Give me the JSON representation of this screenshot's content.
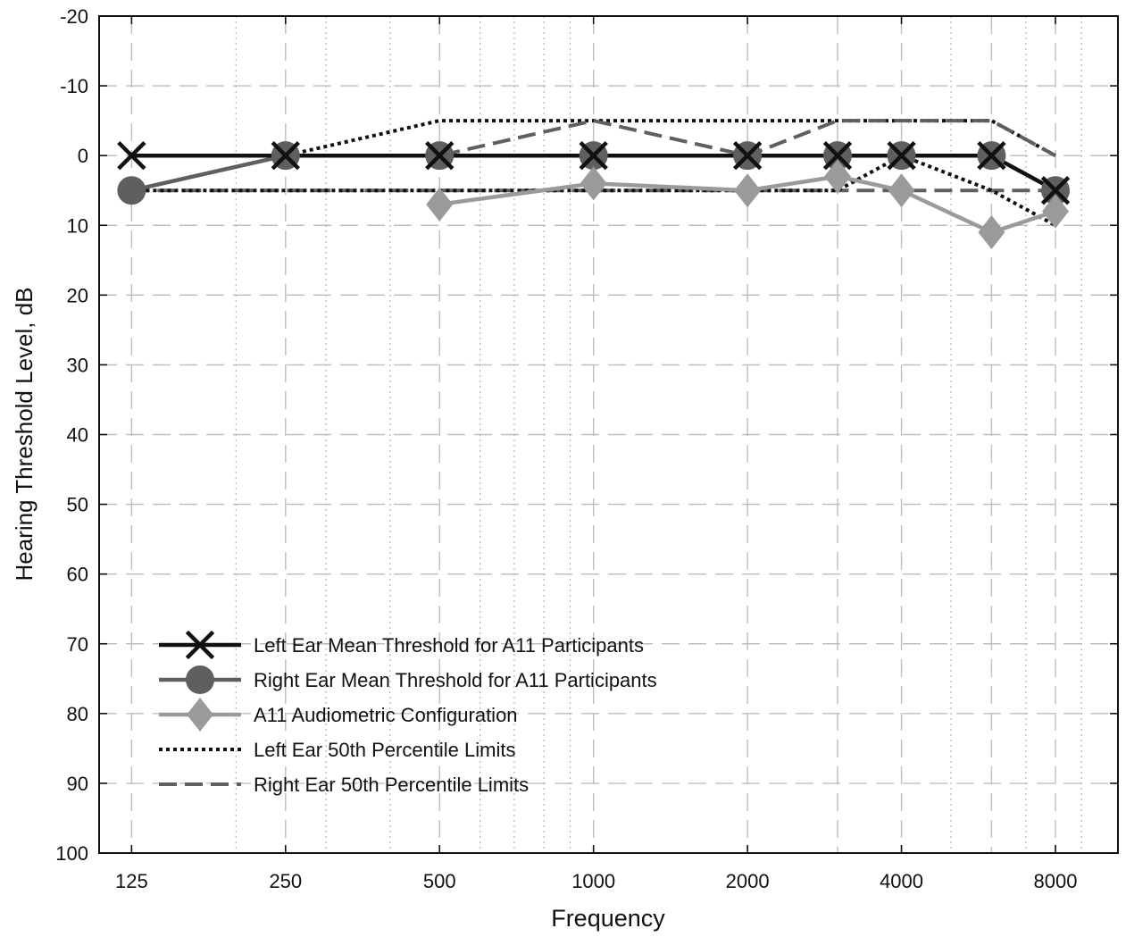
{
  "chart_data": {
    "type": "line",
    "xlabel": "Frequency",
    "ylabel": "Hearing Threshold Level, dB",
    "x_scale": "log2",
    "x_ticks": [
      125,
      250,
      500,
      1000,
      2000,
      4000,
      8000
    ],
    "x_tick_labels": [
      "125",
      "250",
      "500",
      "1000",
      "2000",
      "4000",
      "8000"
    ],
    "x_grid_major": [
      125,
      250,
      500,
      1000,
      2000,
      3000,
      4000,
      6000,
      8000
    ],
    "x_grid_minor": [
      200,
      300,
      400,
      600,
      700,
      800,
      900,
      5000,
      7000,
      9000
    ],
    "xlim": [
      108,
      10600
    ],
    "ylim": [
      -20,
      100
    ],
    "y_inverted": true,
    "y_ticks": [
      -20,
      -10,
      0,
      10,
      20,
      30,
      40,
      50,
      60,
      70,
      80,
      90,
      100
    ],
    "y_tick_labels": [
      "-20",
      "-10",
      "0",
      "10",
      "20",
      "30",
      "40",
      "50",
      "60",
      "70",
      "80",
      "90",
      "100"
    ],
    "y_dash_grid": [
      -10,
      0,
      10,
      20,
      30,
      40,
      50,
      60,
      70,
      80,
      90
    ],
    "grid": true,
    "legend_position": "lower-left",
    "series": [
      {
        "key": "left-ear-mean",
        "name": "Left Ear Mean Threshold for A11 Participants",
        "color": "#111111",
        "line": "solid",
        "marker": "x",
        "x": [
          125,
          250,
          500,
          1000,
          2000,
          3000,
          4000,
          6000,
          8000
        ],
        "y": [
          0,
          0,
          0,
          0,
          0,
          0,
          0,
          0,
          5
        ]
      },
      {
        "key": "right-ear-mean",
        "name": "Right Ear Mean Threshold for A11 Participants",
        "color": "#5f5f5f",
        "line": "solid",
        "marker": "circle",
        "x": [
          125,
          250,
          500,
          1000,
          2000,
          3000,
          4000,
          6000,
          8000
        ],
        "y": [
          5,
          0,
          0,
          0,
          0,
          0,
          0,
          0,
          5
        ]
      },
      {
        "key": "a11-configuration",
        "name": "A11 Audiometric Configuration",
        "color": "#9a9a9a",
        "line": "solid",
        "marker": "diamond",
        "x": [
          500,
          1000,
          2000,
          3000,
          4000,
          6000,
          8000
        ],
        "y": [
          7,
          4,
          5,
          3,
          5,
          11,
          8
        ]
      },
      {
        "key": "left-ear-50th-upper",
        "name": "Left Ear 50th Percentile Limits",
        "color": "#111111",
        "line": "dotted",
        "marker": "none",
        "x": [
          125,
          250,
          500,
          1000,
          2000,
          3000,
          4000,
          6000,
          8000
        ],
        "y": [
          0,
          0,
          -5,
          -5,
          -5,
          -5,
          -5,
          -5,
          0
        ]
      },
      {
        "key": "left-ear-50th-lower",
        "color": "#111111",
        "line": "dotted",
        "marker": "none",
        "x": [
          125,
          250,
          500,
          1000,
          2000,
          3000,
          4000,
          6000,
          8000
        ],
        "y": [
          5,
          5,
          5,
          5,
          5,
          5,
          0,
          5,
          10
        ]
      },
      {
        "key": "right-ear-50th-upper",
        "name": "Right Ear 50th Percentile Limits",
        "color": "#5f5f5f",
        "line": "dashed",
        "marker": "none",
        "x": [
          125,
          250,
          500,
          1000,
          2000,
          3000,
          4000,
          6000,
          8000
        ],
        "y": [
          0,
          0,
          0,
          -5,
          0,
          -5,
          -5,
          -5,
          0
        ]
      },
      {
        "key": "right-ear-50th-lower",
        "color": "#5f5f5f",
        "line": "dashed",
        "marker": "none",
        "x": [
          125,
          250,
          500,
          1000,
          2000,
          3000,
          4000,
          6000,
          8000
        ],
        "y": [
          5,
          5,
          5,
          5,
          5,
          5,
          5,
          5,
          5
        ]
      }
    ]
  }
}
